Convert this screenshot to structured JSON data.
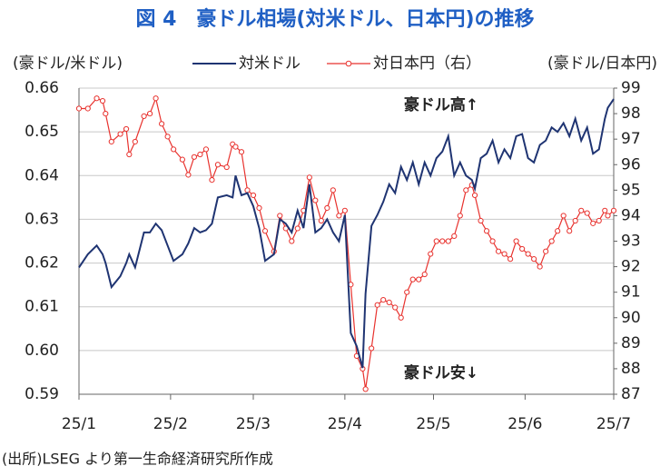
{
  "chart_data": {
    "type": "line",
    "title": "図 4　豪ドル相場(対米ドル、日本円)の推移",
    "y_label": "(豪ドル/米ドル)",
    "y2_label": "(豪ドル/日本円)",
    "annotations": [
      "豪ドル高↑",
      "豪ドル安↓"
    ],
    "source": "(出所)LSEG より第一生命経済研究所作成",
    "x": [
      0,
      3,
      6,
      8,
      9,
      11,
      14,
      16,
      17,
      19,
      22,
      24,
      26,
      28,
      30,
      32,
      35,
      37,
      39,
      41,
      43,
      45,
      47,
      50,
      52,
      53,
      55,
      57,
      59,
      61,
      63,
      66,
      68,
      70,
      72,
      74,
      76,
      78,
      80,
      82,
      84,
      86,
      88,
      90,
      92,
      94,
      96,
      97,
      99,
      101,
      103,
      105,
      107,
      109,
      111,
      113,
      115,
      117,
      119,
      121,
      123,
      125,
      127,
      129,
      131,
      133,
      134,
      136,
      138,
      140,
      142,
      144,
      146,
      148,
      150,
      152,
      154,
      156,
      158,
      160,
      162,
      164,
      166,
      168,
      170,
      172,
      174,
      176,
      178,
      179,
      181
    ],
    "xlim": [
      0,
      181
    ],
    "xticks": [
      {
        "value": 0,
        "label": "25/1"
      },
      {
        "value": 31,
        "label": "25/2"
      },
      {
        "value": 59,
        "label": "25/3"
      },
      {
        "value": 90,
        "label": "25/4"
      },
      {
        "value": 120,
        "label": "25/5"
      },
      {
        "value": 151,
        "label": "25/6"
      },
      {
        "value": 181,
        "label": "25/7"
      }
    ],
    "ylim": [
      0.59,
      0.66
    ],
    "yticks": [
      0.59,
      {
        "value": 0.6,
        "label": "0.60"
      },
      0.61,
      0.62,
      0.63,
      0.64,
      0.65,
      0.66
    ],
    "y2lim": [
      87,
      99
    ],
    "y2ticks": [
      87,
      88,
      89,
      90,
      91,
      92,
      93,
      94,
      95,
      96,
      97,
      98,
      99
    ],
    "grid": true,
    "series": [
      {
        "name": "対米ドル",
        "color": "#1f3472",
        "values": [
          0.619,
          0.622,
          0.624,
          0.622,
          0.62,
          0.6145,
          0.617,
          0.62,
          0.622,
          0.619,
          0.627,
          0.627,
          0.629,
          0.6275,
          0.624,
          0.6205,
          0.622,
          0.6245,
          0.628,
          0.627,
          0.6275,
          0.629,
          0.635,
          0.6355,
          0.635,
          0.64,
          0.6355,
          0.636,
          0.633,
          0.628,
          0.6205,
          0.622,
          0.63,
          0.629,
          0.627,
          0.632,
          0.628,
          0.638,
          0.627,
          0.628,
          0.63,
          0.627,
          0.625,
          0.631,
          0.604,
          0.601,
          0.596,
          0.613,
          0.6285,
          0.631,
          0.634,
          0.638,
          0.636,
          0.642,
          0.639,
          0.643,
          0.638,
          0.643,
          0.64,
          0.644,
          0.6455,
          0.649,
          0.64,
          0.643,
          0.64,
          0.639,
          0.637,
          0.644,
          0.645,
          0.648,
          0.643,
          0.646,
          0.644,
          0.649,
          0.6495,
          0.644,
          0.643,
          0.647,
          0.648,
          0.651,
          0.65,
          0.652,
          0.649,
          0.653,
          0.648,
          0.651,
          0.645,
          0.646,
          0.653,
          0.6555,
          0.6575
        ]
      },
      {
        "name": "対日本円（右）",
        "color": "#e8322e",
        "axis": "y2",
        "values": [
          98.2,
          98.2,
          98.6,
          98.5,
          98.0,
          96.9,
          97.2,
          97.4,
          96.4,
          96.9,
          97.9,
          98.0,
          98.6,
          97.6,
          97.1,
          96.6,
          96.2,
          95.6,
          96.3,
          96.4,
          96.6,
          95.4,
          96.0,
          95.9,
          96.8,
          96.7,
          96.5,
          95.0,
          94.8,
          94.3,
          93.4,
          92.6,
          94.0,
          93.5,
          93.0,
          93.5,
          94.2,
          95.5,
          94.6,
          93.8,
          94.3,
          95.0,
          94.0,
          94.2,
          91.3,
          88.5,
          88.0,
          87.2,
          88.8,
          90.5,
          90.7,
          90.6,
          90.4,
          90.0,
          91.0,
          91.5,
          91.5,
          91.7,
          92.5,
          93.0,
          93.0,
          93.0,
          93.2,
          94.0,
          95.0,
          95.2,
          94.8,
          93.8,
          93.4,
          93.0,
          92.6,
          92.5,
          92.3,
          93.0,
          92.7,
          92.5,
          92.3,
          92.0,
          92.6,
          93.0,
          93.4,
          94.0,
          93.4,
          93.8,
          94.2,
          94.1,
          93.7,
          93.8,
          94.2,
          94.0,
          94.2
        ]
      }
    ]
  }
}
